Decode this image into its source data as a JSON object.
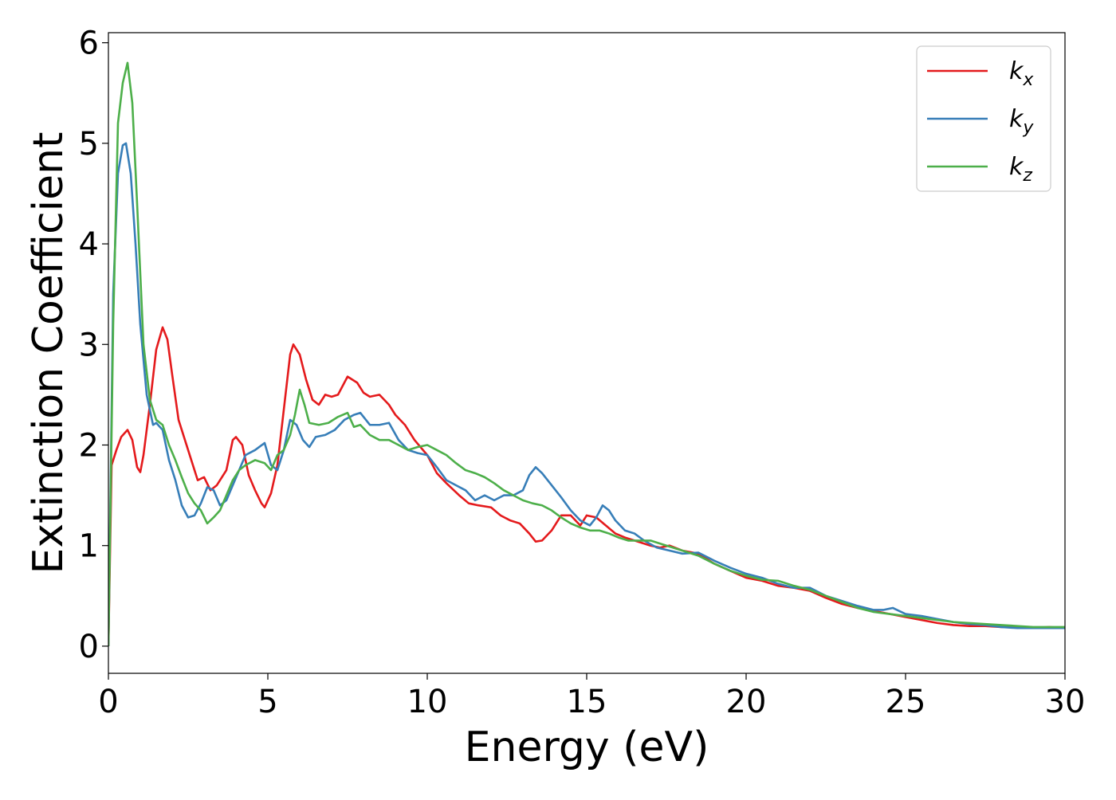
{
  "chart_data": {
    "type": "line",
    "title": "",
    "xlabel": "Energy (eV)",
    "ylabel": "Extinction Coefficient",
    "xlim": [
      0,
      30
    ],
    "ylim": [
      -0.27,
      6.1
    ],
    "xticks": [
      "0",
      "5",
      "10",
      "15",
      "20",
      "25",
      "30"
    ],
    "yticks": [
      "0",
      "1",
      "2",
      "3",
      "4",
      "5",
      "6"
    ],
    "grid": false,
    "legend_position": "top-right",
    "legend": [
      {
        "base": "k",
        "sub": "x"
      },
      {
        "base": "k",
        "sub": "y"
      },
      {
        "base": "k",
        "sub": "z"
      }
    ],
    "colors": {
      "kx": "#e41a1c",
      "ky": "#377eb8",
      "kz": "#4daf4a"
    },
    "series": [
      {
        "key": "kx",
        "x": [
          0,
          0.1,
          0.25,
          0.4,
          0.6,
          0.75,
          0.9,
          1.0,
          1.1,
          1.3,
          1.5,
          1.7,
          1.85,
          2.0,
          2.2,
          2.4,
          2.6,
          2.8,
          3.0,
          3.2,
          3.4,
          3.7,
          3.9,
          4.0,
          4.2,
          4.4,
          4.6,
          4.8,
          4.9,
          5.1,
          5.3,
          5.5,
          5.7,
          5.8,
          6.0,
          6.2,
          6.4,
          6.6,
          6.8,
          7.0,
          7.2,
          7.5,
          7.8,
          8.0,
          8.2,
          8.5,
          8.8,
          9.0,
          9.3,
          9.6,
          10.0,
          10.3,
          10.6,
          11.0,
          11.3,
          11.6,
          12.0,
          12.3,
          12.6,
          12.9,
          13.2,
          13.4,
          13.6,
          13.9,
          14.2,
          14.5,
          14.8,
          15.0,
          15.3,
          15.6,
          15.9,
          16.2,
          16.5,
          17.0,
          17.3,
          17.6,
          18.0,
          18.5,
          19.0,
          19.5,
          20.0,
          20.5,
          21.0,
          21.5,
          22.0,
          22.5,
          23.0,
          23.5,
          24.0,
          24.5,
          25.0,
          25.5,
          26.0,
          26.5,
          27.0,
          27.5,
          28.0,
          28.5,
          29.0,
          29.5,
          30.0
        ],
        "y": [
          0,
          1.8,
          1.95,
          2.08,
          2.15,
          2.05,
          1.78,
          1.73,
          1.9,
          2.4,
          2.95,
          3.17,
          3.05,
          2.7,
          2.25,
          2.05,
          1.85,
          1.65,
          1.68,
          1.55,
          1.6,
          1.75,
          2.05,
          2.08,
          2.0,
          1.7,
          1.55,
          1.42,
          1.38,
          1.52,
          1.8,
          2.35,
          2.9,
          3.0,
          2.9,
          2.65,
          2.45,
          2.4,
          2.5,
          2.48,
          2.5,
          2.68,
          2.62,
          2.52,
          2.48,
          2.5,
          2.4,
          2.3,
          2.2,
          2.05,
          1.9,
          1.72,
          1.62,
          1.5,
          1.42,
          1.4,
          1.38,
          1.3,
          1.25,
          1.22,
          1.12,
          1.04,
          1.05,
          1.15,
          1.3,
          1.3,
          1.2,
          1.3,
          1.28,
          1.2,
          1.12,
          1.08,
          1.05,
          1.0,
          0.98,
          1.0,
          0.95,
          0.92,
          0.82,
          0.75,
          0.68,
          0.65,
          0.6,
          0.58,
          0.55,
          0.48,
          0.42,
          0.38,
          0.35,
          0.32,
          0.29,
          0.26,
          0.23,
          0.21,
          0.2,
          0.2,
          0.19,
          0.19,
          0.18,
          0.19,
          0.18
        ]
      },
      {
        "key": "ky",
        "x": [
          0,
          0.15,
          0.3,
          0.45,
          0.55,
          0.7,
          0.85,
          1.0,
          1.2,
          1.4,
          1.5,
          1.7,
          1.9,
          2.1,
          2.3,
          2.5,
          2.7,
          2.9,
          3.1,
          3.3,
          3.5,
          3.7,
          3.9,
          4.1,
          4.3,
          4.6,
          4.9,
          5.1,
          5.3,
          5.5,
          5.7,
          5.9,
          6.1,
          6.3,
          6.5,
          6.8,
          7.1,
          7.4,
          7.7,
          7.9,
          8.2,
          8.5,
          8.8,
          9.1,
          9.4,
          9.7,
          10.0,
          10.3,
          10.6,
          10.9,
          11.2,
          11.5,
          11.8,
          12.1,
          12.4,
          12.7,
          13.0,
          13.2,
          13.4,
          13.6,
          13.9,
          14.2,
          14.5,
          14.8,
          15.1,
          15.3,
          15.5,
          15.7,
          15.9,
          16.2,
          16.5,
          16.8,
          17.2,
          17.6,
          18.0,
          18.5,
          19.0,
          19.5,
          20.0,
          20.5,
          21.0,
          21.5,
          22.0,
          22.5,
          23.0,
          23.5,
          24.0,
          24.3,
          24.6,
          25.0,
          25.5,
          26.0,
          26.5,
          27.0,
          27.5,
          28.0,
          28.5,
          29.0,
          29.5,
          30.0
        ],
        "y": [
          0,
          3.5,
          4.7,
          4.98,
          5.0,
          4.7,
          4.0,
          3.2,
          2.5,
          2.2,
          2.22,
          2.15,
          1.85,
          1.65,
          1.4,
          1.28,
          1.3,
          1.42,
          1.58,
          1.55,
          1.4,
          1.45,
          1.6,
          1.75,
          1.9,
          1.95,
          2.02,
          1.8,
          1.75,
          1.95,
          2.25,
          2.2,
          2.05,
          1.98,
          2.08,
          2.1,
          2.15,
          2.25,
          2.3,
          2.32,
          2.2,
          2.2,
          2.22,
          2.05,
          1.95,
          1.92,
          1.9,
          1.78,
          1.65,
          1.6,
          1.55,
          1.45,
          1.5,
          1.45,
          1.5,
          1.5,
          1.55,
          1.7,
          1.78,
          1.72,
          1.6,
          1.48,
          1.35,
          1.25,
          1.2,
          1.28,
          1.4,
          1.35,
          1.25,
          1.15,
          1.12,
          1.05,
          0.98,
          0.95,
          0.92,
          0.93,
          0.85,
          0.78,
          0.72,
          0.68,
          0.62,
          0.58,
          0.58,
          0.5,
          0.45,
          0.4,
          0.36,
          0.36,
          0.38,
          0.32,
          0.3,
          0.27,
          0.24,
          0.22,
          0.21,
          0.19,
          0.18,
          0.18,
          0.18,
          0.18
        ]
      },
      {
        "key": "kz",
        "x": [
          0,
          0.15,
          0.3,
          0.45,
          0.6,
          0.75,
          0.9,
          1.1,
          1.3,
          1.5,
          1.7,
          1.9,
          2.1,
          2.3,
          2.5,
          2.7,
          2.9,
          3.1,
          3.3,
          3.5,
          3.7,
          3.9,
          4.1,
          4.3,
          4.6,
          4.9,
          5.1,
          5.3,
          5.5,
          5.7,
          5.85,
          6.0,
          6.15,
          6.3,
          6.6,
          6.9,
          7.2,
          7.5,
          7.7,
          7.9,
          8.2,
          8.5,
          8.8,
          9.1,
          9.4,
          9.7,
          10.0,
          10.3,
          10.6,
          10.9,
          11.2,
          11.5,
          11.8,
          12.1,
          12.4,
          12.7,
          13.0,
          13.3,
          13.6,
          13.9,
          14.2,
          14.5,
          14.8,
          15.1,
          15.4,
          15.7,
          16.0,
          16.3,
          16.6,
          17.0,
          17.5,
          18.0,
          18.5,
          19.0,
          19.5,
          20.0,
          20.5,
          21.0,
          21.5,
          22.0,
          22.5,
          23.0,
          23.5,
          24.0,
          24.5,
          25.0,
          25.5,
          26.0,
          26.5,
          27.0,
          27.5,
          28.0,
          28.5,
          29.0,
          29.5,
          30.0
        ],
        "y": [
          0,
          3.2,
          5.2,
          5.6,
          5.8,
          5.4,
          4.4,
          3.0,
          2.45,
          2.25,
          2.2,
          2.0,
          1.85,
          1.68,
          1.52,
          1.42,
          1.35,
          1.22,
          1.28,
          1.35,
          1.5,
          1.65,
          1.75,
          1.8,
          1.85,
          1.82,
          1.75,
          1.9,
          1.95,
          2.1,
          2.3,
          2.55,
          2.4,
          2.22,
          2.2,
          2.22,
          2.28,
          2.32,
          2.18,
          2.2,
          2.1,
          2.05,
          2.05,
          2.0,
          1.95,
          1.98,
          2.0,
          1.95,
          1.9,
          1.82,
          1.75,
          1.72,
          1.68,
          1.62,
          1.55,
          1.5,
          1.45,
          1.42,
          1.4,
          1.35,
          1.28,
          1.22,
          1.18,
          1.15,
          1.15,
          1.12,
          1.08,
          1.05,
          1.05,
          1.05,
          1.0,
          0.95,
          0.9,
          0.82,
          0.75,
          0.7,
          0.66,
          0.65,
          0.6,
          0.56,
          0.5,
          0.44,
          0.38,
          0.34,
          0.32,
          0.3,
          0.28,
          0.26,
          0.24,
          0.23,
          0.22,
          0.21,
          0.2,
          0.19,
          0.19,
          0.19
        ]
      }
    ]
  }
}
